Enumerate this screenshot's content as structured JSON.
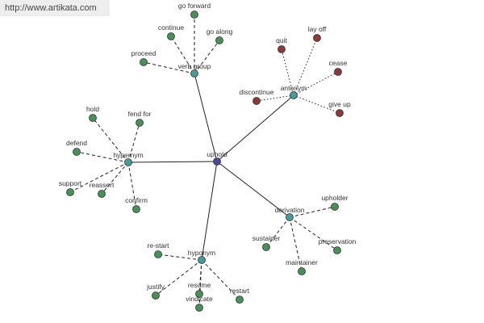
{
  "link": "http://www.artikata.com",
  "center": {
    "label": "uphold"
  },
  "groups": [
    {
      "label": "verb group",
      "children": [
        "go forward",
        "continue",
        "go along",
        "proceed"
      ]
    },
    {
      "label": "antonym",
      "children": [
        "quit",
        "lay off",
        "cease",
        "give up",
        "discontinue"
      ]
    },
    {
      "label": "hypernym",
      "children": [
        "hold",
        "fend for",
        "defend",
        "support",
        "reassert",
        "confirm"
      ]
    },
    {
      "label": "derivation",
      "children": [
        "upholder",
        "sustainer",
        "preservation",
        "maintainer"
      ]
    },
    {
      "label": "hyponym",
      "children": [
        "re-start",
        "justify",
        "resume",
        "restart",
        "vindicate"
      ]
    }
  ]
}
